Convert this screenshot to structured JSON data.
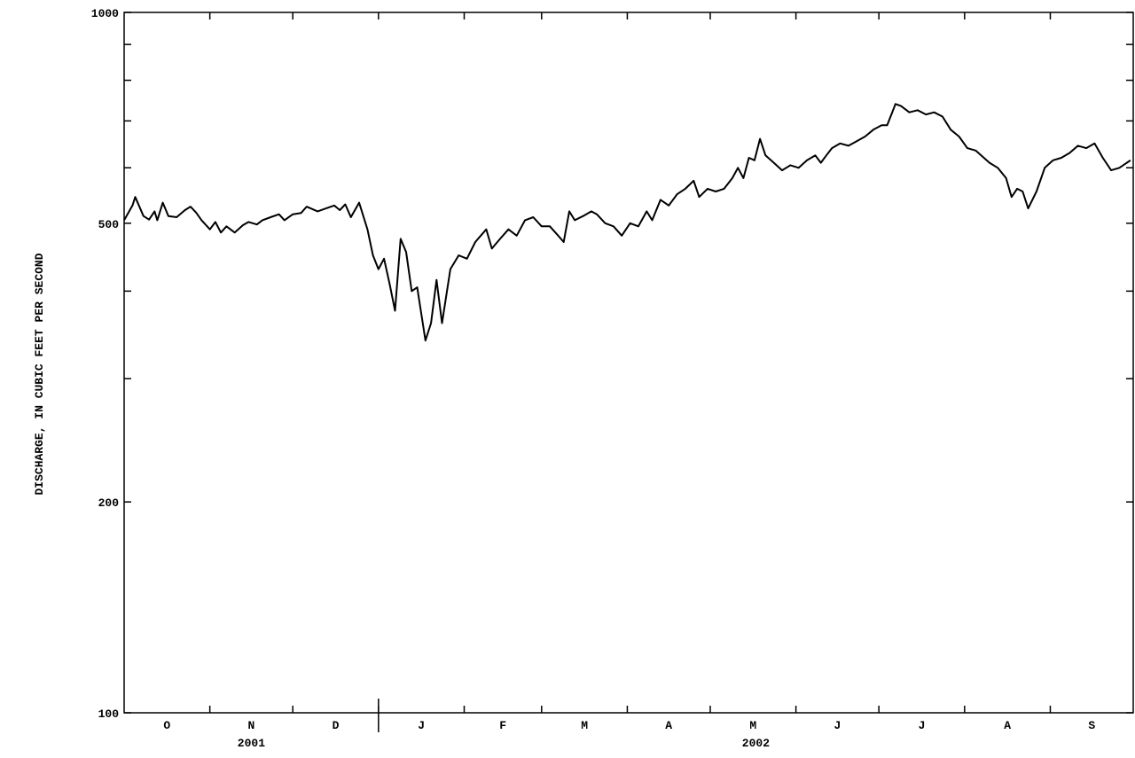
{
  "chart_data": {
    "type": "line",
    "ylabel": "DISCHARGE, IN CUBIC FEET PER SECOND",
    "yscale": "log",
    "ylim": [
      100,
      1000
    ],
    "yticks_labeled": [
      "1000",
      "500",
      "200",
      "100"
    ],
    "xlim": [
      "2001-10-01",
      "2002-09-30"
    ],
    "months": [
      "O",
      "N",
      "D",
      "J",
      "F",
      "M",
      "A",
      "M",
      "J",
      "J",
      "A",
      "S"
    ],
    "years": [
      "2001",
      "2002"
    ],
    "grid": false,
    "series": [
      {
        "points": [
          [
            "2001-10-01",
            505
          ],
          [
            "2001-10-04",
            530
          ],
          [
            "2001-10-05",
            545
          ],
          [
            "2001-10-08",
            512
          ],
          [
            "2001-10-10",
            506
          ],
          [
            "2001-10-12",
            520
          ],
          [
            "2001-10-13",
            505
          ],
          [
            "2001-10-15",
            535
          ],
          [
            "2001-10-17",
            512
          ],
          [
            "2001-10-20",
            510
          ],
          [
            "2001-10-23",
            522
          ],
          [
            "2001-10-25",
            528
          ],
          [
            "2001-10-27",
            518
          ],
          [
            "2001-10-29",
            505
          ],
          [
            "2001-11-01",
            490
          ],
          [
            "2001-11-03",
            502
          ],
          [
            "2001-11-05",
            485
          ],
          [
            "2001-11-07",
            495
          ],
          [
            "2001-11-10",
            485
          ],
          [
            "2001-11-13",
            497
          ],
          [
            "2001-11-15",
            502
          ],
          [
            "2001-11-18",
            498
          ],
          [
            "2001-11-20",
            505
          ],
          [
            "2001-11-23",
            510
          ],
          [
            "2001-11-26",
            515
          ],
          [
            "2001-11-28",
            505
          ],
          [
            "2001-12-01",
            515
          ],
          [
            "2001-12-04",
            517
          ],
          [
            "2001-12-06",
            528
          ],
          [
            "2001-12-10",
            520
          ],
          [
            "2001-12-13",
            525
          ],
          [
            "2001-12-16",
            530
          ],
          [
            "2001-12-18",
            522
          ],
          [
            "2001-12-20",
            532
          ],
          [
            "2001-12-22",
            510
          ],
          [
            "2001-12-25",
            535
          ],
          [
            "2001-12-28",
            490
          ],
          [
            "2001-12-30",
            450
          ],
          [
            "2002-01-01",
            430
          ],
          [
            "2002-01-03",
            445
          ],
          [
            "2002-01-05",
            410
          ],
          [
            "2002-01-07",
            375
          ],
          [
            "2002-01-09",
            475
          ],
          [
            "2002-01-11",
            455
          ],
          [
            "2002-01-13",
            400
          ],
          [
            "2002-01-15",
            405
          ],
          [
            "2002-01-18",
            340
          ],
          [
            "2002-01-20",
            360
          ],
          [
            "2002-01-22",
            415
          ],
          [
            "2002-01-24",
            360
          ],
          [
            "2002-01-27",
            430
          ],
          [
            "2002-01-30",
            450
          ],
          [
            "2002-02-02",
            445
          ],
          [
            "2002-02-05",
            470
          ],
          [
            "2002-02-07",
            480
          ],
          [
            "2002-02-09",
            490
          ],
          [
            "2002-02-11",
            460
          ],
          [
            "2002-02-14",
            475
          ],
          [
            "2002-02-17",
            490
          ],
          [
            "2002-02-20",
            480
          ],
          [
            "2002-02-23",
            505
          ],
          [
            "2002-02-26",
            510
          ],
          [
            "2002-03-01",
            495
          ],
          [
            "2002-03-04",
            495
          ],
          [
            "2002-03-07",
            480
          ],
          [
            "2002-03-09",
            470
          ],
          [
            "2002-03-11",
            520
          ],
          [
            "2002-03-13",
            505
          ],
          [
            "2002-03-16",
            512
          ],
          [
            "2002-03-19",
            520
          ],
          [
            "2002-03-21",
            515
          ],
          [
            "2002-03-24",
            500
          ],
          [
            "2002-03-27",
            495
          ],
          [
            "2002-03-30",
            480
          ],
          [
            "2002-04-02",
            500
          ],
          [
            "2002-04-05",
            495
          ],
          [
            "2002-04-08",
            520
          ],
          [
            "2002-04-10",
            505
          ],
          [
            "2002-04-13",
            540
          ],
          [
            "2002-04-16",
            530
          ],
          [
            "2002-04-19",
            550
          ],
          [
            "2002-04-22",
            560
          ],
          [
            "2002-04-25",
            575
          ],
          [
            "2002-04-27",
            545
          ],
          [
            "2002-04-30",
            560
          ],
          [
            "2002-05-03",
            555
          ],
          [
            "2002-05-06",
            560
          ],
          [
            "2002-05-09",
            580
          ],
          [
            "2002-05-11",
            600
          ],
          [
            "2002-05-13",
            580
          ],
          [
            "2002-05-15",
            620
          ],
          [
            "2002-05-17",
            615
          ],
          [
            "2002-05-19",
            660
          ],
          [
            "2002-05-21",
            625
          ],
          [
            "2002-05-24",
            610
          ],
          [
            "2002-05-27",
            595
          ],
          [
            "2002-05-30",
            605
          ],
          [
            "2002-06-02",
            600
          ],
          [
            "2002-06-05",
            615
          ],
          [
            "2002-06-08",
            625
          ],
          [
            "2002-06-10",
            610
          ],
          [
            "2002-06-12",
            625
          ],
          [
            "2002-06-14",
            640
          ],
          [
            "2002-06-17",
            650
          ],
          [
            "2002-06-20",
            645
          ],
          [
            "2002-06-23",
            655
          ],
          [
            "2002-06-26",
            665
          ],
          [
            "2002-06-29",
            680
          ],
          [
            "2002-07-02",
            690
          ],
          [
            "2002-07-04",
            690
          ],
          [
            "2002-07-07",
            740
          ],
          [
            "2002-07-09",
            735
          ],
          [
            "2002-07-12",
            720
          ],
          [
            "2002-07-15",
            725
          ],
          [
            "2002-07-18",
            715
          ],
          [
            "2002-07-21",
            720
          ],
          [
            "2002-07-24",
            710
          ],
          [
            "2002-07-27",
            680
          ],
          [
            "2002-07-30",
            665
          ],
          [
            "2002-08-02",
            640
          ],
          [
            "2002-08-05",
            635
          ],
          [
            "2002-08-08",
            620
          ],
          [
            "2002-08-10",
            610
          ],
          [
            "2002-08-13",
            600
          ],
          [
            "2002-08-16",
            580
          ],
          [
            "2002-08-18",
            545
          ],
          [
            "2002-08-20",
            560
          ],
          [
            "2002-08-22",
            555
          ],
          [
            "2002-08-24",
            525
          ],
          [
            "2002-08-27",
            555
          ],
          [
            "2002-08-30",
            600
          ],
          [
            "2002-09-02",
            615
          ],
          [
            "2002-09-05",
            620
          ],
          [
            "2002-09-08",
            630
          ],
          [
            "2002-09-11",
            645
          ],
          [
            "2002-09-14",
            640
          ],
          [
            "2002-09-17",
            650
          ],
          [
            "2002-09-20",
            620
          ],
          [
            "2002-09-23",
            595
          ],
          [
            "2002-09-26",
            600
          ],
          [
            "2002-09-30",
            615
          ]
        ]
      }
    ]
  }
}
